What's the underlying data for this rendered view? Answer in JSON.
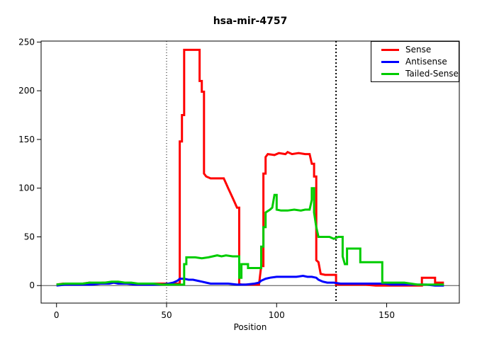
{
  "chart_data": {
    "type": "line",
    "step_style": true,
    "title": "hsa-mir-4757",
    "xlabel": "Position",
    "ylabel": "",
    "xlim": [
      -7,
      183
    ],
    "ylim": [
      -18,
      251
    ],
    "x_ticks": [
      0,
      50,
      100,
      150
    ],
    "y_ticks": [
      0,
      50,
      100,
      150,
      200,
      250
    ],
    "grid": false,
    "zero_line": 0,
    "vlines": [
      {
        "x": 50,
        "style": "dotted",
        "width": 1,
        "color": "#000000"
      },
      {
        "x": 127,
        "style": "dotted",
        "width": 2,
        "color": "#000000"
      }
    ],
    "legend_position": "top-right",
    "series": [
      {
        "name": "Sense",
        "color": "#ff0000",
        "points": [
          [
            0,
            1
          ],
          [
            3,
            2
          ],
          [
            6,
            1
          ],
          [
            9,
            2
          ],
          [
            12,
            2
          ],
          [
            15,
            3
          ],
          [
            18,
            2
          ],
          [
            21,
            3
          ],
          [
            24,
            3
          ],
          [
            27,
            3
          ],
          [
            30,
            2
          ],
          [
            33,
            2
          ],
          [
            36,
            1
          ],
          [
            40,
            1
          ],
          [
            44,
            2
          ],
          [
            48,
            2
          ],
          [
            52,
            2
          ],
          [
            55,
            2
          ],
          [
            56,
            2
          ],
          [
            56,
            148
          ],
          [
            57,
            148
          ],
          [
            57,
            175
          ],
          [
            58,
            175
          ],
          [
            58,
            242
          ],
          [
            65,
            242
          ],
          [
            65,
            210
          ],
          [
            66,
            210
          ],
          [
            66,
            199
          ],
          [
            67,
            199
          ],
          [
            67,
            131
          ],
          [
            67,
            115
          ],
          [
            68,
            112
          ],
          [
            70,
            110
          ],
          [
            76,
            110
          ],
          [
            77,
            105
          ],
          [
            78,
            100
          ],
          [
            79,
            95
          ],
          [
            80,
            90
          ],
          [
            81,
            85
          ],
          [
            82,
            80
          ],
          [
            83,
            80
          ],
          [
            83,
            2
          ],
          [
            84,
            1
          ],
          [
            88,
            1
          ],
          [
            92,
            1
          ],
          [
            93,
            20
          ],
          [
            94,
            20
          ],
          [
            94,
            115
          ],
          [
            95,
            115
          ],
          [
            95,
            132
          ],
          [
            96,
            135
          ],
          [
            99,
            134
          ],
          [
            101,
            136
          ],
          [
            104,
            135
          ],
          [
            105,
            137
          ],
          [
            107,
            135
          ],
          [
            110,
            136
          ],
          [
            113,
            135
          ],
          [
            115,
            135
          ],
          [
            116,
            125
          ],
          [
            117,
            125
          ],
          [
            117,
            112
          ],
          [
            118,
            112
          ],
          [
            118,
            58
          ],
          [
            118,
            26
          ],
          [
            119,
            24
          ],
          [
            120,
            12
          ],
          [
            122,
            11
          ],
          [
            125,
            11
          ],
          [
            127,
            11
          ],
          [
            127,
            1
          ],
          [
            130,
            1
          ],
          [
            135,
            1
          ],
          [
            140,
            1
          ],
          [
            145,
            0
          ],
          [
            150,
            0
          ],
          [
            155,
            0
          ],
          [
            160,
            0
          ],
          [
            166,
            0
          ],
          [
            166,
            8
          ],
          [
            170,
            8
          ],
          [
            172,
            8
          ],
          [
            172,
            3
          ],
          [
            176,
            3
          ]
        ]
      },
      {
        "name": "Antisense",
        "color": "#0000ff",
        "points": [
          [
            0,
            0
          ],
          [
            4,
            1
          ],
          [
            8,
            1
          ],
          [
            12,
            1
          ],
          [
            16,
            1
          ],
          [
            20,
            2
          ],
          [
            24,
            2
          ],
          [
            26,
            3
          ],
          [
            28,
            2
          ],
          [
            32,
            2
          ],
          [
            36,
            1
          ],
          [
            40,
            1
          ],
          [
            44,
            1
          ],
          [
            48,
            1
          ],
          [
            51,
            2
          ],
          [
            53,
            3
          ],
          [
            55,
            5
          ],
          [
            56,
            7
          ],
          [
            58,
            7
          ],
          [
            60,
            6
          ],
          [
            62,
            6
          ],
          [
            64,
            5
          ],
          [
            66,
            4
          ],
          [
            68,
            3
          ],
          [
            70,
            2
          ],
          [
            74,
            2
          ],
          [
            78,
            2
          ],
          [
            82,
            1
          ],
          [
            86,
            1
          ],
          [
            90,
            2
          ],
          [
            92,
            3
          ],
          [
            93,
            5
          ],
          [
            94,
            6
          ],
          [
            95,
            7
          ],
          [
            97,
            8
          ],
          [
            100,
            9
          ],
          [
            103,
            9
          ],
          [
            106,
            9
          ],
          [
            109,
            9
          ],
          [
            112,
            10
          ],
          [
            114,
            9
          ],
          [
            116,
            9
          ],
          [
            118,
            8
          ],
          [
            119,
            6
          ],
          [
            120,
            5
          ],
          [
            121,
            4
          ],
          [
            123,
            3
          ],
          [
            126,
            3
          ],
          [
            129,
            2
          ],
          [
            133,
            2
          ],
          [
            137,
            2
          ],
          [
            141,
            2
          ],
          [
            145,
            2
          ],
          [
            149,
            2
          ],
          [
            152,
            1
          ],
          [
            156,
            1
          ],
          [
            160,
            1
          ],
          [
            164,
            1
          ],
          [
            168,
            1
          ],
          [
            172,
            0
          ],
          [
            176,
            0
          ]
        ]
      },
      {
        "name": "Tailed-Sense",
        "color": "#00cc00",
        "points": [
          [
            0,
            1
          ],
          [
            4,
            2
          ],
          [
            8,
            2
          ],
          [
            12,
            2
          ],
          [
            15,
            3
          ],
          [
            18,
            3
          ],
          [
            22,
            3
          ],
          [
            25,
            4
          ],
          [
            28,
            4
          ],
          [
            31,
            3
          ],
          [
            34,
            3
          ],
          [
            37,
            2
          ],
          [
            40,
            2
          ],
          [
            44,
            2
          ],
          [
            48,
            1
          ],
          [
            52,
            1
          ],
          [
            56,
            1
          ],
          [
            58,
            1
          ],
          [
            58,
            22
          ],
          [
            59,
            22
          ],
          [
            59,
            29
          ],
          [
            63,
            29
          ],
          [
            66,
            28
          ],
          [
            69,
            29
          ],
          [
            71,
            30
          ],
          [
            73,
            31
          ],
          [
            75,
            30
          ],
          [
            77,
            31
          ],
          [
            80,
            30
          ],
          [
            82,
            30
          ],
          [
            83,
            30
          ],
          [
            83,
            8
          ],
          [
            84,
            8
          ],
          [
            84,
            22
          ],
          [
            87,
            22
          ],
          [
            87,
            18
          ],
          [
            90,
            18
          ],
          [
            93,
            18
          ],
          [
            93,
            40
          ],
          [
            94,
            40
          ],
          [
            94,
            60
          ],
          [
            95,
            60
          ],
          [
            95,
            75
          ],
          [
            97,
            78
          ],
          [
            98,
            80
          ],
          [
            99,
            93
          ],
          [
            100,
            93
          ],
          [
            100,
            78
          ],
          [
            102,
            77
          ],
          [
            105,
            77
          ],
          [
            108,
            78
          ],
          [
            111,
            77
          ],
          [
            113,
            78
          ],
          [
            115,
            78
          ],
          [
            116,
            88
          ],
          [
            116,
            100
          ],
          [
            117,
            100
          ],
          [
            117,
            75
          ],
          [
            118,
            60
          ],
          [
            119,
            50
          ],
          [
            120,
            50
          ],
          [
            124,
            50
          ],
          [
            126,
            48
          ],
          [
            128,
            50
          ],
          [
            130,
            50
          ],
          [
            130,
            30
          ],
          [
            131,
            22
          ],
          [
            132,
            22
          ],
          [
            132,
            38
          ],
          [
            134,
            38
          ],
          [
            137,
            38
          ],
          [
            138,
            38
          ],
          [
            138,
            24
          ],
          [
            141,
            24
          ],
          [
            144,
            24
          ],
          [
            147,
            24
          ],
          [
            148,
            24
          ],
          [
            148,
            3
          ],
          [
            151,
            3
          ],
          [
            155,
            3
          ],
          [
            158,
            3
          ],
          [
            161,
            2
          ],
          [
            164,
            1
          ],
          [
            168,
            1
          ],
          [
            172,
            1
          ],
          [
            176,
            1
          ]
        ]
      }
    ]
  },
  "legend": {
    "items": [
      {
        "label": "Sense",
        "color": "#ff0000"
      },
      {
        "label": "Antisense",
        "color": "#0000ff"
      },
      {
        "label": "Tailed-Sense",
        "color": "#00cc00"
      }
    ]
  }
}
